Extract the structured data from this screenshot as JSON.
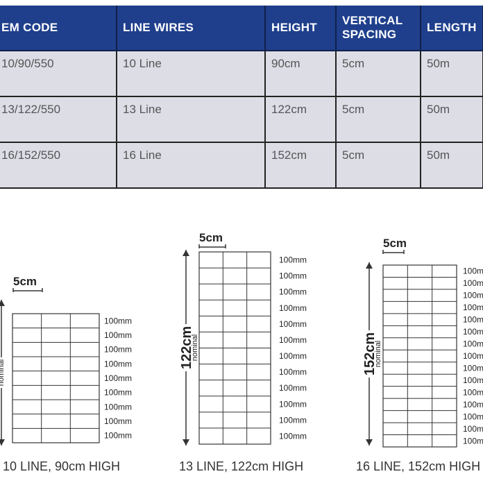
{
  "table": {
    "headers": [
      "EM CODE",
      "LINE WIRES",
      "HEIGHT",
      "VERTICAL SPACING",
      "LENGTH"
    ],
    "header_lines": {
      "vertical_spacing": [
        "VERTICAL",
        "SPACING"
      ]
    },
    "rows": [
      [
        "10/90/550",
        "10 Line",
        "90cm",
        "5cm",
        "50m"
      ],
      [
        "13/122/550",
        "13 Line",
        "122cm",
        "5cm",
        "50m"
      ],
      [
        "16/152/550",
        "16 Line",
        "152cm",
        "5cm",
        "50m"
      ]
    ]
  },
  "diagrams": [
    {
      "spacing_label": "5cm",
      "height_label": "",
      "nominal_label": "nominal",
      "mm_labels": [
        "100mm",
        "100mm",
        "100mm",
        "100mm",
        "100mm",
        "100mm",
        "100mm",
        "100mm",
        "100mm"
      ],
      "caption": "10 LINE, 90cm HIGH"
    },
    {
      "spacing_label": "5cm",
      "height_label": "122cm",
      "nominal_label": "nominal",
      "mm_labels": [
        "100mm",
        "100mm",
        "100mm",
        "100mm",
        "100mm",
        "100mm",
        "100mm",
        "100mm",
        "100mm",
        "100mm",
        "100mm",
        "100mm"
      ],
      "caption": "13 LINE, 122cm HIGH"
    },
    {
      "spacing_label": "5cm",
      "height_label": "152cm",
      "nominal_label": "nominal",
      "mm_labels": [
        "100m",
        "100m",
        "100m",
        "100m",
        "100m",
        "100m",
        "100m",
        "100m",
        "100m",
        "100m",
        "100m",
        "100m",
        "100m",
        "100m",
        "100m"
      ],
      "caption": "16 LINE, 152cm HIGH"
    }
  ],
  "colors": {
    "header_bg": "#1f3f8c",
    "cell_bg": "#dddde6",
    "grid_line": "#333333"
  }
}
